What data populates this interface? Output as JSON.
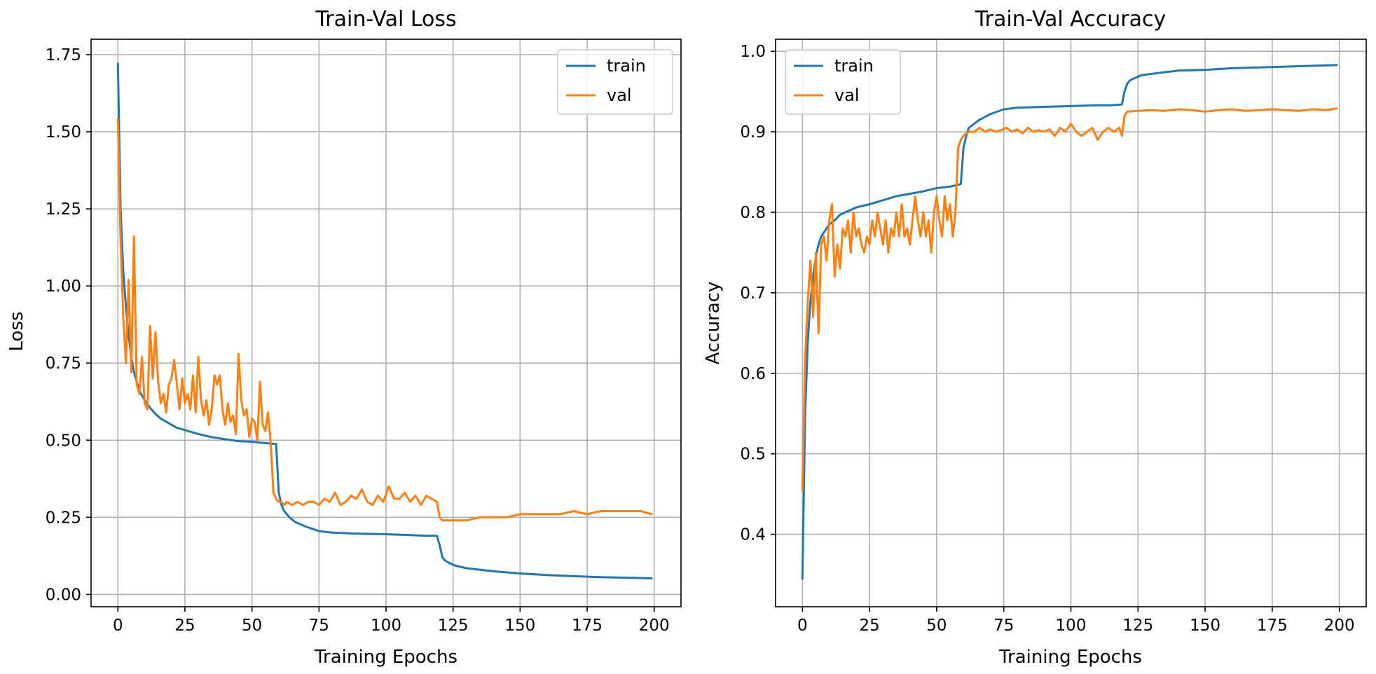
{
  "chart_data": [
    {
      "type": "line",
      "title": "Train-Val Loss",
      "xlabel": "Training Epochs",
      "ylabel": "Loss",
      "xlim": [
        -10,
        210
      ],
      "ylim": [
        -0.04,
        1.8
      ],
      "xticks": [
        0,
        25,
        50,
        75,
        100,
        125,
        150,
        175,
        200
      ],
      "xtick_labels": [
        "0",
        "25",
        "50",
        "75",
        "100",
        "125",
        "150",
        "175",
        "200"
      ],
      "yticks": [
        0,
        0.25,
        0.5,
        0.75,
        1.0,
        1.25,
        1.5,
        1.75
      ],
      "ytick_labels": [
        "0.00",
        "0.25",
        "0.50",
        "0.75",
        "1.00",
        "1.25",
        "1.50",
        "1.75"
      ],
      "grid": true,
      "legend_position": "upper right",
      "series": [
        {
          "name": "train",
          "color": "#1f77b4",
          "x": [
            0,
            1,
            2,
            3,
            4,
            5,
            6,
            7,
            8,
            9,
            10,
            12,
            14,
            16,
            18,
            20,
            22,
            25,
            28,
            30,
            35,
            40,
            45,
            50,
            53,
            56,
            59,
            60,
            61,
            62,
            64,
            66,
            70,
            75,
            80,
            90,
            100,
            110,
            115,
            119,
            120,
            121,
            122,
            124,
            126,
            130,
            140,
            150,
            160,
            170,
            180,
            190,
            199
          ],
          "y": [
            1.72,
            1.25,
            1.05,
            0.93,
            0.84,
            0.77,
            0.72,
            0.69,
            0.66,
            0.645,
            0.63,
            0.605,
            0.585,
            0.57,
            0.56,
            0.55,
            0.54,
            0.533,
            0.525,
            0.52,
            0.51,
            0.503,
            0.497,
            0.495,
            0.492,
            0.49,
            0.488,
            0.33,
            0.29,
            0.27,
            0.25,
            0.235,
            0.22,
            0.205,
            0.2,
            0.197,
            0.195,
            0.192,
            0.19,
            0.19,
            0.16,
            0.12,
            0.11,
            0.1,
            0.093,
            0.085,
            0.075,
            0.068,
            0.063,
            0.059,
            0.056,
            0.054,
            0.052
          ]
        },
        {
          "name": "val",
          "color": "#ff7f0e",
          "x": [
            0,
            1,
            2,
            3,
            4,
            5,
            6,
            7,
            8,
            9,
            10,
            11,
            12,
            13,
            14,
            15,
            16,
            17,
            18,
            19,
            20,
            21,
            22,
            23,
            24,
            25,
            26,
            27,
            28,
            29,
            30,
            31,
            32,
            33,
            34,
            35,
            36,
            37,
            38,
            39,
            40,
            41,
            42,
            43,
            44,
            45,
            46,
            47,
            48,
            49,
            50,
            51,
            52,
            53,
            54,
            55,
            56,
            57,
            58,
            59,
            60,
            61,
            62,
            63,
            65,
            67,
            69,
            71,
            73,
            75,
            77,
            79,
            81,
            83,
            85,
            87,
            89,
            91,
            93,
            95,
            97,
            99,
            101,
            103,
            105,
            107,
            109,
            111,
            113,
            115,
            117,
            119,
            120,
            121,
            125,
            130,
            135,
            140,
            145,
            150,
            155,
            160,
            165,
            170,
            175,
            180,
            185,
            190,
            195,
            199
          ],
          "y": [
            1.54,
            1.15,
            0.9,
            0.75,
            1.02,
            0.72,
            1.16,
            0.68,
            0.65,
            0.77,
            0.62,
            0.6,
            0.87,
            0.7,
            0.85,
            0.69,
            0.62,
            0.65,
            0.59,
            0.68,
            0.7,
            0.76,
            0.68,
            0.6,
            0.7,
            0.62,
            0.65,
            0.6,
            0.71,
            0.59,
            0.77,
            0.63,
            0.58,
            0.63,
            0.55,
            0.6,
            0.71,
            0.68,
            0.71,
            0.6,
            0.55,
            0.62,
            0.56,
            0.58,
            0.52,
            0.78,
            0.63,
            0.58,
            0.6,
            0.51,
            0.57,
            0.56,
            0.5,
            0.69,
            0.55,
            0.53,
            0.59,
            0.49,
            0.33,
            0.31,
            0.3,
            0.3,
            0.29,
            0.3,
            0.29,
            0.3,
            0.29,
            0.3,
            0.3,
            0.29,
            0.31,
            0.3,
            0.33,
            0.29,
            0.3,
            0.32,
            0.31,
            0.34,
            0.3,
            0.29,
            0.32,
            0.3,
            0.35,
            0.31,
            0.31,
            0.33,
            0.3,
            0.32,
            0.29,
            0.32,
            0.31,
            0.3,
            0.25,
            0.24,
            0.24,
            0.24,
            0.25,
            0.25,
            0.25,
            0.26,
            0.26,
            0.26,
            0.26,
            0.27,
            0.26,
            0.27,
            0.27,
            0.27,
            0.27,
            0.26
          ]
        }
      ]
    },
    {
      "type": "line",
      "title": "Train-Val Accuracy",
      "xlabel": "Training Epochs",
      "ylabel": "Accuracy",
      "xlim": [
        -10,
        210
      ],
      "ylim": [
        0.31,
        1.015
      ],
      "xticks": [
        0,
        25,
        50,
        75,
        100,
        125,
        150,
        175,
        200
      ],
      "xtick_labels": [
        "0",
        "25",
        "50",
        "75",
        "100",
        "125",
        "150",
        "175",
        "200"
      ],
      "yticks": [
        0.4,
        0.5,
        0.6,
        0.7,
        0.8,
        0.9,
        1.0
      ],
      "ytick_labels": [
        "0.4",
        "0.5",
        "0.6",
        "0.7",
        "0.8",
        "0.9",
        "1.0"
      ],
      "grid": true,
      "legend_position": "upper left",
      "series": [
        {
          "name": "train",
          "color": "#1f77b4",
          "x": [
            0,
            1,
            2,
            3,
            4,
            5,
            6,
            7,
            8,
            10,
            12,
            14,
            16,
            18,
            20,
            25,
            30,
            35,
            40,
            45,
            50,
            55,
            59,
            60,
            61,
            62,
            64,
            66,
            70,
            75,
            80,
            90,
            100,
            110,
            115,
            119,
            120,
            121,
            122,
            124,
            126,
            130,
            140,
            150,
            160,
            170,
            180,
            190,
            199
          ],
          "y": [
            0.345,
            0.55,
            0.64,
            0.69,
            0.72,
            0.745,
            0.76,
            0.77,
            0.775,
            0.785,
            0.79,
            0.797,
            0.8,
            0.803,
            0.806,
            0.81,
            0.815,
            0.82,
            0.823,
            0.826,
            0.83,
            0.832,
            0.835,
            0.88,
            0.895,
            0.905,
            0.91,
            0.915,
            0.922,
            0.928,
            0.93,
            0.931,
            0.932,
            0.933,
            0.933,
            0.934,
            0.95,
            0.96,
            0.964,
            0.967,
            0.97,
            0.972,
            0.976,
            0.977,
            0.979,
            0.98,
            0.981,
            0.982,
            0.983
          ]
        },
        {
          "name": "val",
          "color": "#ff7f0e",
          "x": [
            0,
            1,
            2,
            3,
            4,
            5,
            6,
            7,
            8,
            9,
            10,
            11,
            12,
            13,
            14,
            15,
            16,
            17,
            18,
            19,
            20,
            21,
            22,
            23,
            24,
            25,
            26,
            27,
            28,
            29,
            30,
            31,
            32,
            33,
            34,
            35,
            36,
            37,
            38,
            39,
            40,
            41,
            42,
            43,
            44,
            45,
            46,
            47,
            48,
            49,
            50,
            51,
            52,
            53,
            54,
            55,
            56,
            57,
            58,
            59,
            60,
            61,
            62,
            64,
            66,
            68,
            70,
            72,
            74,
            76,
            78,
            80,
            82,
            84,
            86,
            88,
            90,
            92,
            94,
            96,
            98,
            100,
            102,
            104,
            106,
            108,
            110,
            112,
            114,
            116,
            118,
            119,
            120,
            121,
            125,
            130,
            135,
            140,
            145,
            150,
            155,
            160,
            165,
            170,
            175,
            180,
            185,
            190,
            195,
            199
          ],
          "y": [
            0.455,
            0.62,
            0.69,
            0.74,
            0.67,
            0.75,
            0.65,
            0.76,
            0.77,
            0.74,
            0.79,
            0.81,
            0.72,
            0.76,
            0.73,
            0.78,
            0.77,
            0.79,
            0.75,
            0.8,
            0.77,
            0.78,
            0.76,
            0.75,
            0.77,
            0.76,
            0.79,
            0.77,
            0.8,
            0.78,
            0.76,
            0.79,
            0.75,
            0.78,
            0.77,
            0.8,
            0.77,
            0.81,
            0.77,
            0.78,
            0.76,
            0.79,
            0.82,
            0.79,
            0.77,
            0.8,
            0.77,
            0.79,
            0.75,
            0.8,
            0.82,
            0.79,
            0.77,
            0.82,
            0.79,
            0.81,
            0.77,
            0.8,
            0.88,
            0.89,
            0.895,
            0.898,
            0.9,
            0.9,
            0.905,
            0.9,
            0.903,
            0.9,
            0.902,
            0.905,
            0.9,
            0.903,
            0.898,
            0.905,
            0.9,
            0.902,
            0.9,
            0.903,
            0.895,
            0.905,
            0.9,
            0.91,
            0.9,
            0.895,
            0.9,
            0.905,
            0.89,
            0.9,
            0.905,
            0.9,
            0.905,
            0.895,
            0.92,
            0.925,
            0.926,
            0.927,
            0.926,
            0.928,
            0.927,
            0.925,
            0.927,
            0.928,
            0.926,
            0.927,
            0.928,
            0.927,
            0.926,
            0.928,
            0.927,
            0.929
          ]
        }
      ]
    }
  ]
}
